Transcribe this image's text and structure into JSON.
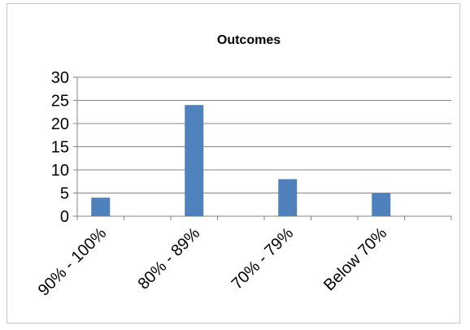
{
  "chart_data": {
    "type": "bar",
    "title": "Outcomes",
    "categories": [
      "90% - 100%",
      "80% - 89%",
      "70% - 79%",
      "Below 70%"
    ],
    "values": [
      4,
      24,
      8,
      5
    ],
    "ylim": [
      0,
      30
    ],
    "yticks": [
      0,
      5,
      10,
      15,
      20,
      25,
      30
    ],
    "grid": true,
    "colors": {
      "bar": "#4F81BD",
      "grid": "#868686",
      "axis": "#868686"
    }
  }
}
